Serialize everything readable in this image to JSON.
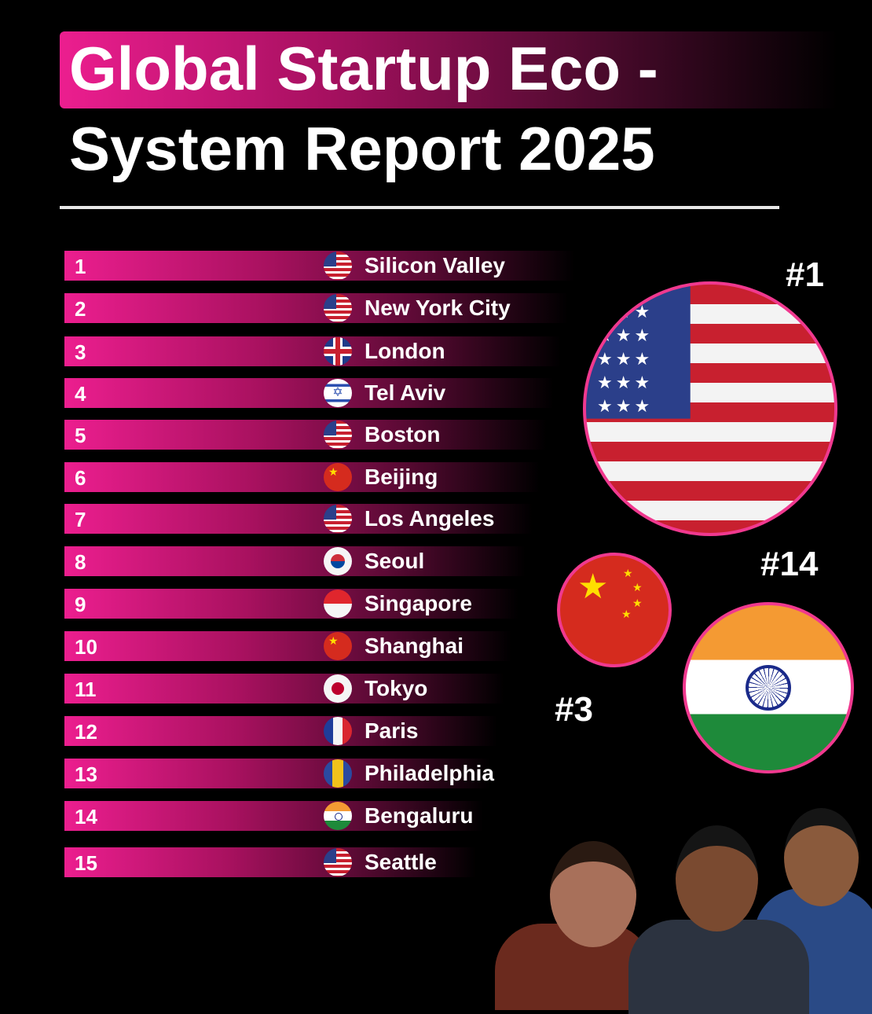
{
  "title": {
    "line1": "Global Startup Eco -",
    "line2": "System Report 2025"
  },
  "colors": {
    "accent": "#ec1e8f",
    "background": "#000000",
    "text": "#ffffff"
  },
  "rankings": [
    {
      "rank": "1",
      "city": "Silicon Valley",
      "flag": "us"
    },
    {
      "rank": "2",
      "city": "New York City",
      "flag": "us"
    },
    {
      "rank": "3",
      "city": "London",
      "flag": "uk"
    },
    {
      "rank": "4",
      "city": "Tel Aviv",
      "flag": "il"
    },
    {
      "rank": "5",
      "city": "Boston",
      "flag": "us"
    },
    {
      "rank": "6",
      "city": "Beijing",
      "flag": "cn"
    },
    {
      "rank": "7",
      "city": "Los Angeles",
      "flag": "us"
    },
    {
      "rank": "8",
      "city": "Seoul",
      "flag": "kr"
    },
    {
      "rank": "9",
      "city": "Singapore",
      "flag": "sg"
    },
    {
      "rank": "10",
      "city": "Shanghai",
      "flag": "cn"
    },
    {
      "rank": "11",
      "city": "Tokyo",
      "flag": "jp"
    },
    {
      "rank": "12",
      "city": "Paris",
      "flag": "fr"
    },
    {
      "rank": "13",
      "city": "Philadelphia",
      "flag": "ph"
    },
    {
      "rank": "14",
      "city": "Bengaluru",
      "flag": "in"
    },
    {
      "rank": "15",
      "city": "Seattle",
      "flag": "us"
    }
  ],
  "highlights": {
    "us": "#1",
    "china": "#3",
    "india": "#14"
  }
}
